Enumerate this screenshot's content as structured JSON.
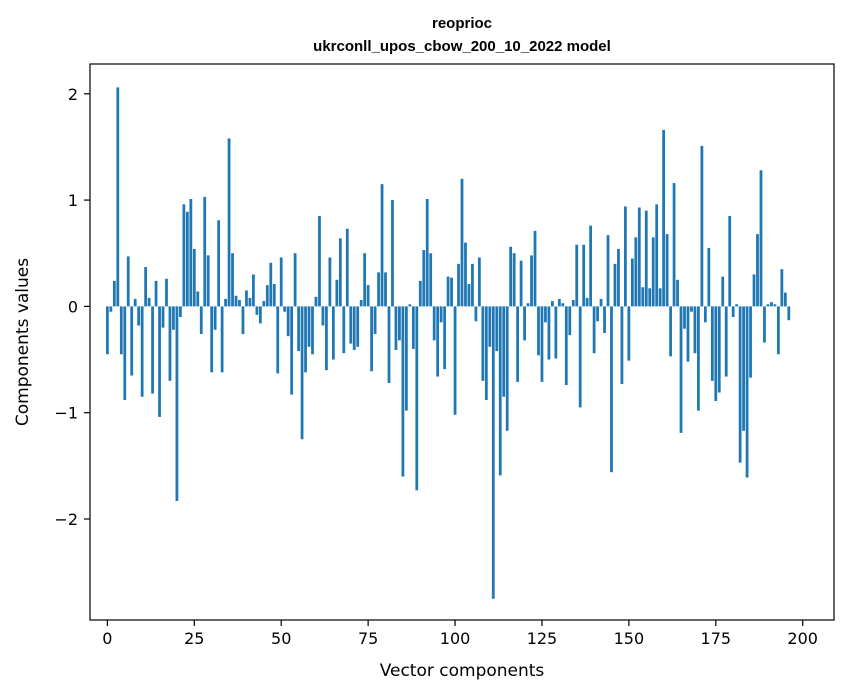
{
  "chart_data": {
    "type": "bar",
    "title_line1": "reoprioc",
    "title_line2": "ukrconll_upos_cbow_200_10_2022 model",
    "xlabel": "Vector components",
    "ylabel": "Components values",
    "xlim": [
      -5,
      209
    ],
    "ylim": [
      -2.95,
      2.28
    ],
    "x_ticks": [
      {
        "value": 0,
        "label": "0"
      },
      {
        "value": 25,
        "label": "25"
      },
      {
        "value": 50,
        "label": "50"
      },
      {
        "value": 75,
        "label": "75"
      },
      {
        "value": 100,
        "label": "100"
      },
      {
        "value": 125,
        "label": "125"
      },
      {
        "value": 150,
        "label": "150"
      },
      {
        "value": 175,
        "label": "175"
      },
      {
        "value": 200,
        "label": "200"
      }
    ],
    "y_ticks": [
      {
        "value": 2,
        "label": "2"
      },
      {
        "value": 1,
        "label": "1"
      },
      {
        "value": 0,
        "label": "0"
      },
      {
        "value": -1,
        "label": "−1"
      },
      {
        "value": -2,
        "label": "−2"
      }
    ],
    "bar_color": "#1f77b4",
    "values": [
      -0.45,
      -0.05,
      0.24,
      2.06,
      -0.45,
      -0.88,
      0.47,
      -0.65,
      0.07,
      -0.18,
      -0.85,
      0.37,
      0.08,
      -0.82,
      0.24,
      -1.04,
      -0.2,
      0.26,
      -0.7,
      -0.22,
      -1.83,
      -0.1,
      0.96,
      0.89,
      1.01,
      0.54,
      0.14,
      -0.26,
      1.03,
      0.48,
      -0.62,
      -0.22,
      0.81,
      -0.62,
      0.07,
      1.58,
      0.5,
      0.1,
      0.06,
      -0.26,
      0.15,
      0.08,
      0.3,
      -0.08,
      -0.16,
      0.05,
      0.2,
      0.41,
      0.21,
      -0.63,
      0.46,
      -0.05,
      -0.28,
      -0.83,
      0.5,
      -0.42,
      -1.25,
      -0.62,
      -0.38,
      -0.45,
      0.09,
      0.85,
      -0.18,
      -0.6,
      0.46,
      -0.5,
      0.25,
      0.64,
      -0.44,
      0.73,
      -0.35,
      -0.41,
      -0.38,
      0.06,
      0.5,
      0.2,
      -0.61,
      -0.26,
      0.32,
      1.15,
      0.32,
      -0.72,
      1.0,
      -0.41,
      -0.32,
      -1.6,
      -0.98,
      0.02,
      -0.4,
      -1.73,
      0.24,
      0.53,
      1.01,
      0.5,
      -0.32,
      -0.66,
      -0.15,
      -0.59,
      0.28,
      0.27,
      -1.02,
      0.4,
      1.2,
      0.6,
      0.21,
      0.4,
      -0.14,
      0.46,
      -0.7,
      -0.88,
      -0.38,
      -2.75,
      -0.42,
      -1.59,
      -0.85,
      -1.17,
      0.56,
      0.5,
      -0.71,
      0.43,
      -0.32,
      0.03,
      0.48,
      0.71,
      -0.46,
      -0.71,
      -0.15,
      -0.5,
      0.05,
      -0.49,
      0.07,
      0.03,
      -0.74,
      -0.27,
      0.06,
      0.58,
      -0.95,
      0.58,
      0.08,
      0.76,
      -0.44,
      -0.14,
      0.07,
      -0.25,
      0.67,
      -1.56,
      0.4,
      0.54,
      -0.73,
      0.94,
      -0.51,
      0.45,
      0.65,
      0.93,
      0.18,
      0.9,
      0.17,
      0.65,
      0.96,
      0.17,
      1.66,
      0.68,
      -0.47,
      1.16,
      0.25,
      -1.19,
      -0.21,
      -0.52,
      -0.05,
      -0.44,
      -0.98,
      1.51,
      -0.15,
      0.55,
      -0.7,
      -0.89,
      -0.81,
      0.28,
      -0.66,
      0.85,
      -0.1,
      0.02,
      -1.47,
      -1.17,
      -1.61,
      -0.67,
      0.3,
      0.68,
      1.28,
      -0.34,
      0.02,
      0.04,
      0.02,
      -0.45,
      0.35,
      0.13,
      -0.13
    ]
  }
}
